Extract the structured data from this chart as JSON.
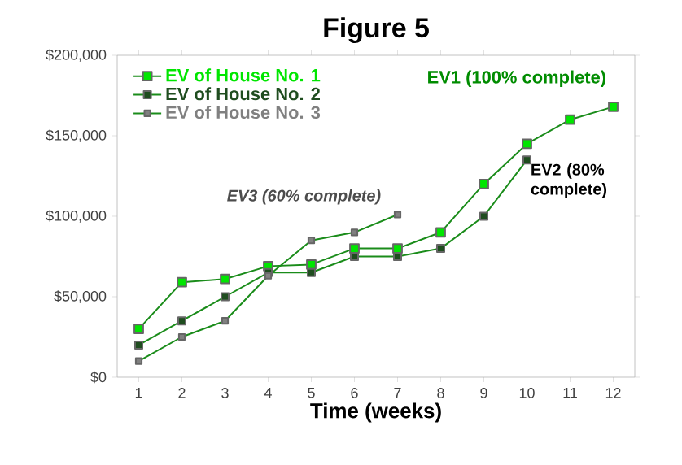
{
  "chart_data": {
    "type": "line",
    "title": "Figure 5",
    "xlabel": "Time (weeks)",
    "x": [
      1,
      2,
      3,
      4,
      5,
      6,
      7,
      8,
      9,
      10,
      11,
      12
    ],
    "xlim": [
      0.5,
      12.5
    ],
    "xticks": [
      1,
      2,
      3,
      4,
      5,
      6,
      7,
      8,
      9,
      10,
      11,
      12
    ],
    "ylim": [
      0,
      200000
    ],
    "yticks": [
      {
        "value": 0,
        "label": "$0"
      },
      {
        "value": 50000,
        "label": "$50,000"
      },
      {
        "value": 100000,
        "label": "$100,000"
      },
      {
        "value": 150000,
        "label": "$150,000"
      },
      {
        "value": 200000,
        "label": "$200,000"
      }
    ],
    "series": [
      {
        "name": "EV of House No. 1",
        "color": "#00e600",
        "values": [
          30000,
          59000,
          61000,
          69000,
          70000,
          80000,
          80000,
          90000,
          120000,
          145000,
          160000,
          168000
        ]
      },
      {
        "name": "EV of House No. 2",
        "color": "#1f4d1f",
        "values": [
          20000,
          35000,
          50000,
          65000,
          65000,
          75000,
          75000,
          80000,
          100000,
          135000,
          null,
          null
        ]
      },
      {
        "name": "EV of House No. 3",
        "color": "#808080",
        "values": [
          10000,
          25000,
          35000,
          63000,
          85000,
          90000,
          101000,
          null,
          null,
          null,
          null,
          null
        ]
      }
    ],
    "annotations": [
      {
        "text": "EV1 (100% complete)",
        "x": 12,
        "y": 168000
      },
      {
        "text": "EV2 (80% complete)",
        "x": 10,
        "y": 135000
      },
      {
        "text": "EV3 (60% complete)",
        "x": 7,
        "y": 101000
      }
    ],
    "marker": "square",
    "line_style": "solid",
    "grid": false,
    "legend": "top left"
  }
}
